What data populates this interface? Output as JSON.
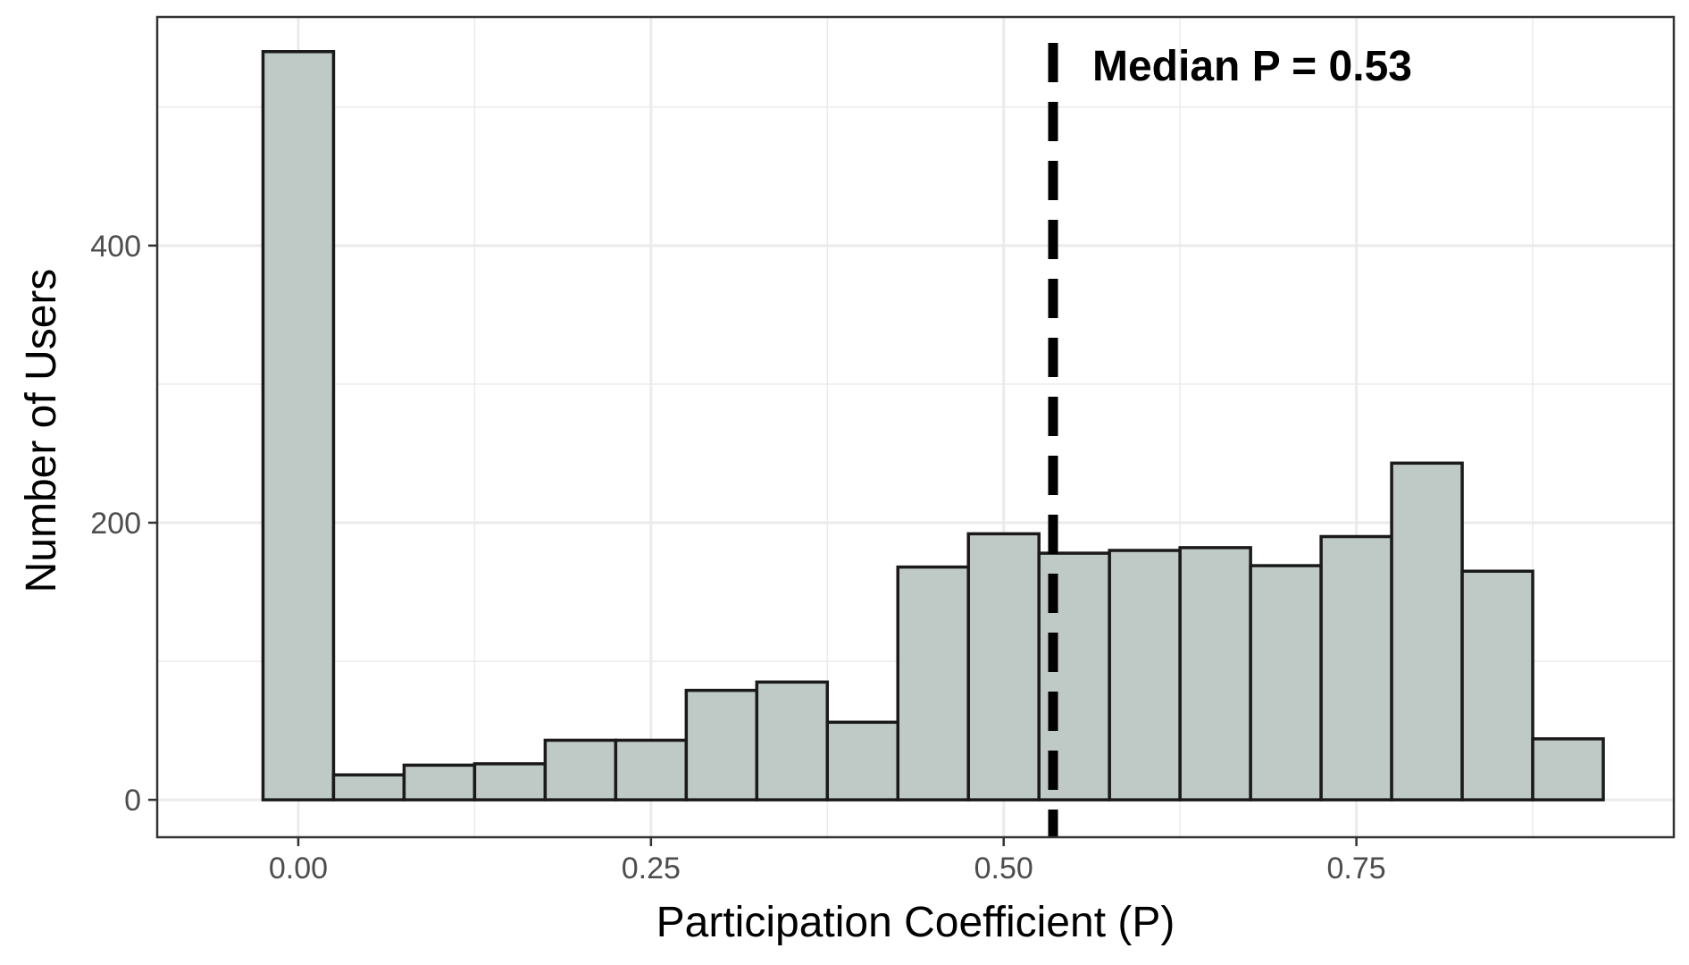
{
  "chart_data": {
    "type": "bar",
    "subtype": "histogram",
    "title": "",
    "xlabel": "Participation Coefficient (P)",
    "ylabel": "Number of Users",
    "bin_width": 0.05,
    "bin_centers": [
      0.0,
      0.05,
      0.1,
      0.15,
      0.2,
      0.25,
      0.3,
      0.35,
      0.4,
      0.45,
      0.5,
      0.55,
      0.6,
      0.65,
      0.7,
      0.75,
      0.8,
      0.85,
      0.9
    ],
    "values": [
      540,
      18,
      25,
      26,
      43,
      43,
      79,
      85,
      56,
      168,
      192,
      178,
      180,
      182,
      169,
      190,
      243,
      165,
      44
    ],
    "xlim": [
      -0.1,
      0.975
    ],
    "ylim": [
      -27,
      565
    ],
    "x_ticks": [
      0.0,
      0.25,
      0.5,
      0.75
    ],
    "x_tick_labels": [
      "0.00",
      "0.25",
      "0.50",
      "0.75"
    ],
    "y_ticks": [
      0,
      200,
      400
    ],
    "y_tick_labels": [
      "0",
      "200",
      "400"
    ],
    "grid": true,
    "median_line": {
      "x": 0.535,
      "label": "Median P = 0.53",
      "style": "dashed"
    },
    "colors": {
      "bar_fill": "#bfc9c6",
      "bar_stroke": "#1a1a1a",
      "grid": "#ebebeb",
      "panel_border": "#333333",
      "median_line": "#000000"
    }
  }
}
